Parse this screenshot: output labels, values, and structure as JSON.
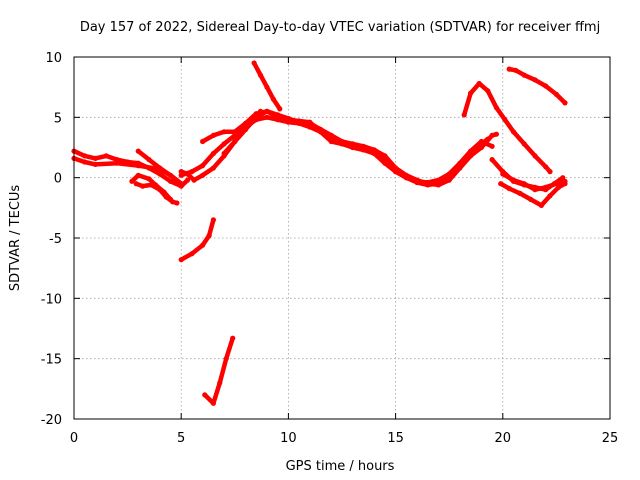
{
  "chart_data": {
    "type": "line",
    "title": "Day 157 of 2022, Sidereal Day-to-day VTEC variation (SDTVAR) for receiver ffmj",
    "xlabel": "GPS time / hours",
    "ylabel": "SDTVAR / TECUs",
    "xlim": [
      0,
      25
    ],
    "ylim": [
      -20,
      10
    ],
    "xticks": [
      0,
      5,
      10,
      15,
      20,
      25
    ],
    "yticks": [
      -20,
      -15,
      -10,
      -5,
      0,
      5,
      10
    ],
    "xtick_labels": [
      "0",
      "5",
      "10",
      "15",
      "20",
      "25"
    ],
    "ytick_labels": [
      "-20",
      "-15",
      "-10",
      "-5",
      "0",
      "5",
      "10"
    ],
    "grid": true,
    "line_color": "#ff0000",
    "series": [
      {
        "name": "trace-1",
        "x": [
          0,
          0.5,
          1.0,
          1.5,
          2.0,
          2.5,
          3.0,
          3.5,
          4.0,
          4.5,
          5.0,
          5.3
        ],
        "y": [
          2.2,
          1.8,
          1.6,
          1.8,
          1.5,
          1.3,
          1.2,
          0.8,
          0.3,
          -0.3,
          -0.7,
          -0.2
        ]
      },
      {
        "name": "trace-2",
        "x": [
          0,
          0.5,
          1.0,
          2.0,
          3.0,
          4.0,
          4.5,
          5.0
        ],
        "y": [
          1.6,
          1.3,
          1.1,
          1.2,
          1.0,
          0.7,
          0.2,
          -0.5
        ]
      },
      {
        "name": "trace-3",
        "x": [
          2.7,
          3.0,
          3.5,
          3.8,
          4.2,
          4.5
        ],
        "y": [
          -0.3,
          0.2,
          -0.1,
          -0.6,
          -1.2,
          -1.8
        ]
      },
      {
        "name": "trace-4",
        "x": [
          3.0,
          3.5,
          4.0,
          4.5,
          5.0
        ],
        "y": [
          2.2,
          1.5,
          0.8,
          0.2,
          -0.5
        ]
      },
      {
        "name": "trace-5",
        "x": [
          2.9,
          3.2,
          3.6,
          4.0,
          4.3,
          4.6,
          4.8
        ],
        "y": [
          -0.5,
          -0.7,
          -0.6,
          -1.0,
          -1.6,
          -2.0,
          -2.1
        ]
      },
      {
        "name": "trace-6",
        "x": [
          5.0,
          5.3,
          5.6,
          6.0,
          6.5,
          7.0,
          7.5,
          8.0,
          8.4,
          8.7
        ],
        "y": [
          0.5,
          0.3,
          -0.2,
          0.2,
          0.8,
          1.8,
          3.0,
          4.0,
          4.8,
          5.5
        ]
      },
      {
        "name": "trace-7",
        "x": [
          5.0,
          5.5,
          6.0,
          6.5,
          7.0,
          7.5,
          8.0,
          8.5,
          9.0,
          9.5,
          10.0,
          10.5,
          11.0,
          11.5,
          12.0,
          12.5,
          13.0,
          13.5,
          14.0,
          14.5,
          15.0,
          15.5,
          16.0,
          16.5,
          17.0,
          17.5,
          18.0,
          18.5,
          19.0,
          19.5
        ],
        "y": [
          0.2,
          0.5,
          1.0,
          2.0,
          2.8,
          3.5,
          4.2,
          4.8,
          5.0,
          4.8,
          4.6,
          4.5,
          4.2,
          3.8,
          3.2,
          2.8,
          2.5,
          2.3,
          2.0,
          1.2,
          0.5,
          0.0,
          -0.3,
          -0.4,
          -0.2,
          0.3,
          1.2,
          2.2,
          3.0,
          2.6
        ]
      },
      {
        "name": "trace-8",
        "x": [
          6.0,
          6.5,
          7.0,
          7.5,
          8.0,
          8.5,
          9.0,
          9.5,
          10.0,
          10.5,
          11.0,
          11.5,
          12.0,
          12.5,
          13.0,
          13.5,
          14.0,
          14.5,
          15.0,
          15.5,
          16.0,
          16.5,
          17.0,
          17.5,
          18.0,
          18.5,
          19.0,
          19.3
        ],
        "y": [
          3.0,
          3.5,
          3.8,
          3.8,
          4.5,
          5.3,
          5.5,
          5.0,
          4.8,
          4.7,
          4.6,
          3.8,
          3.0,
          2.8,
          2.7,
          2.5,
          2.2,
          1.5,
          0.5,
          0.0,
          -0.4,
          -0.6,
          -0.5,
          0.0,
          1.0,
          2.0,
          2.8,
          3.2
        ]
      },
      {
        "name": "trace-9",
        "x": [
          7.0,
          7.5,
          8.0,
          8.5,
          9.0,
          9.5,
          10.0,
          10.5,
          11.0,
          11.5,
          12.0,
          12.5,
          13.0,
          13.5,
          14.0,
          14.5,
          15.0,
          15.5,
          16.0,
          16.5,
          17.0,
          17.5,
          18.0,
          18.5,
          19.0,
          19.5,
          19.7
        ],
        "y": [
          2.0,
          3.0,
          4.0,
          5.0,
          5.5,
          5.2,
          4.9,
          4.6,
          4.5,
          4.0,
          3.5,
          3.0,
          2.8,
          2.6,
          2.3,
          1.8,
          0.8,
          0.2,
          -0.2,
          -0.5,
          -0.6,
          -0.2,
          0.8,
          1.8,
          2.5,
          3.5,
          3.6
        ]
      },
      {
        "name": "trace-10",
        "x": [
          8.4,
          8.7,
          9.0,
          9.3,
          9.6
        ],
        "y": [
          9.5,
          8.5,
          7.5,
          6.5,
          5.7
        ]
      },
      {
        "name": "trace-11",
        "x": [
          5.0,
          5.5,
          6.0,
          6.3,
          6.5
        ],
        "y": [
          -6.8,
          -6.3,
          -5.6,
          -4.8,
          -3.5
        ]
      },
      {
        "name": "trace-12",
        "x": [
          6.1,
          6.5,
          6.8,
          7.1,
          7.4
        ],
        "y": [
          -18.0,
          -18.7,
          -17.0,
          -15.0,
          -13.3
        ]
      },
      {
        "name": "trace-13",
        "x": [
          18.2,
          18.5,
          18.9,
          19.3,
          19.7,
          20.1,
          20.5,
          21.0,
          21.5,
          22.0,
          22.2
        ],
        "y": [
          5.2,
          7.0,
          7.8,
          7.2,
          5.8,
          4.8,
          3.8,
          2.8,
          1.8,
          0.9,
          0.5
        ]
      },
      {
        "name": "trace-14",
        "x": [
          20.3,
          20.6,
          21.0,
          21.5,
          22.0,
          22.5,
          22.9
        ],
        "y": [
          9.0,
          8.9,
          8.5,
          8.1,
          7.6,
          6.9,
          6.2
        ]
      },
      {
        "name": "trace-15",
        "x": [
          19.9,
          20.3,
          20.8,
          21.3,
          21.8,
          22.2,
          22.6,
          22.9
        ],
        "y": [
          -0.5,
          -0.9,
          -1.3,
          -1.8,
          -2.3,
          -1.5,
          -0.8,
          -0.5
        ]
      },
      {
        "name": "trace-16",
        "x": [
          20.0,
          20.5,
          21.0,
          21.5,
          22.0,
          22.5,
          22.9
        ],
        "y": [
          0.3,
          -0.2,
          -0.5,
          -1.0,
          -0.8,
          -0.5,
          -0.3
        ]
      },
      {
        "name": "trace-17",
        "x": [
          19.5,
          20.0,
          20.5,
          21.0,
          21.5,
          22.0,
          22.4,
          22.8
        ],
        "y": [
          1.5,
          0.5,
          -0.3,
          -0.6,
          -0.8,
          -1.0,
          -0.5,
          0.0
        ]
      }
    ]
  }
}
